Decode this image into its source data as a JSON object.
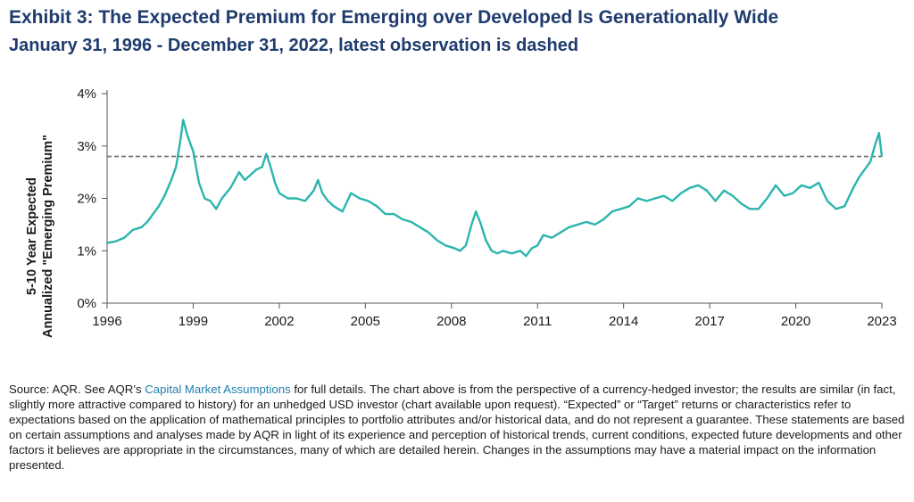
{
  "chart_data": {
    "type": "line",
    "title": "Exhibit 3: The Expected Premium for Emerging over Developed Is Generationally Wide",
    "subtitle": "January 31, 1996 - December 31, 2022, latest observation is dashed",
    "ylabel_line1": "5-10 Year Expected",
    "ylabel_line2": "Annualized \"Emerging Premium\"",
    "xlim": [
      1996,
      2023
    ],
    "ylim": [
      0,
      4
    ],
    "x_ticks": [
      "1996",
      "1999",
      "2002",
      "2005",
      "2008",
      "2011",
      "2014",
      "2017",
      "2020",
      "2023"
    ],
    "y_ticks": [
      "0%",
      "1%",
      "2%",
      "3%",
      "4%"
    ],
    "latest_observation": 2.8,
    "line_color": "#2bb5ad",
    "dashed_color": "#777777",
    "series": [
      {
        "x": [
          1996.0,
          1996.3,
          1996.6,
          1996.9,
          1997.2,
          1997.4,
          1997.6,
          1997.8,
          1998.0,
          1998.2,
          1998.4,
          1998.55,
          1998.65,
          1998.8,
          1999.0,
          1999.2,
          1999.4,
          1999.6,
          1999.8,
          2000.0,
          2000.3,
          2000.6,
          2000.8,
          2001.0,
          2001.2,
          2001.4,
          2001.55,
          2001.7,
          2001.85,
          2002.0,
          2002.3,
          2002.6,
          2002.9,
          2003.2,
          2003.35,
          2003.5,
          2003.7,
          2003.9,
          2004.2,
          2004.5,
          2004.8,
          2005.1,
          2005.4,
          2005.7,
          2006.0,
          2006.3,
          2006.6,
          2006.9,
          2007.2,
          2007.5,
          2007.8,
          2008.1,
          2008.3,
          2008.5,
          2008.7,
          2008.85,
          2009.0,
          2009.2,
          2009.4,
          2009.6,
          2009.8,
          2010.1,
          2010.4,
          2010.6,
          2010.8,
          2011.0,
          2011.2,
          2011.5,
          2011.8,
          2012.1,
          2012.4,
          2012.7,
          2013.0,
          2013.3,
          2013.6,
          2013.9,
          2014.2,
          2014.5,
          2014.8,
          2015.1,
          2015.4,
          2015.7,
          2016.0,
          2016.3,
          2016.6,
          2016.9,
          2017.2,
          2017.5,
          2017.8,
          2018.1,
          2018.4,
          2018.7,
          2019.0,
          2019.3,
          2019.6,
          2019.9,
          2020.2,
          2020.5,
          2020.8,
          2021.1,
          2021.4,
          2021.7,
          2022.0,
          2022.2,
          2022.4,
          2022.6,
          2022.75,
          2022.9,
          2023.0
        ],
        "y": [
          1.15,
          1.18,
          1.25,
          1.4,
          1.45,
          1.55,
          1.7,
          1.85,
          2.05,
          2.3,
          2.6,
          3.1,
          3.5,
          3.2,
          2.9,
          2.3,
          2.0,
          1.95,
          1.8,
          2.0,
          2.2,
          2.5,
          2.35,
          2.45,
          2.55,
          2.6,
          2.85,
          2.6,
          2.3,
          2.1,
          2.0,
          2.0,
          1.95,
          2.15,
          2.35,
          2.1,
          1.95,
          1.85,
          1.75,
          2.1,
          2.0,
          1.95,
          1.85,
          1.7,
          1.7,
          1.6,
          1.55,
          1.45,
          1.35,
          1.2,
          1.1,
          1.05,
          1.0,
          1.1,
          1.5,
          1.75,
          1.55,
          1.2,
          1.0,
          0.95,
          1.0,
          0.95,
          1.0,
          0.9,
          1.05,
          1.1,
          1.3,
          1.25,
          1.35,
          1.45,
          1.5,
          1.55,
          1.5,
          1.6,
          1.75,
          1.8,
          1.85,
          2.0,
          1.95,
          2.0,
          2.05,
          1.95,
          2.1,
          2.2,
          2.25,
          2.15,
          1.95,
          2.15,
          2.05,
          1.9,
          1.8,
          1.8,
          2.0,
          2.25,
          2.05,
          2.1,
          2.25,
          2.2,
          2.3,
          1.95,
          1.8,
          1.85,
          2.2,
          2.4,
          2.55,
          2.7,
          3.0,
          3.25,
          2.8
        ]
      }
    ]
  },
  "source": {
    "prefix": "Source: AQR. See AQR’s ",
    "link": "Capital Market Assumptions",
    "rest": " for full details. The chart above is from the perspective of a currency-hedged investor; the results are similar (in fact, slightly more attractive compared to history) for an unhedged USD investor (chart available upon request). “Expected” or “Target” returns or characteristics refer to expectations based on the application of mathematical principles to portfolio attributes and/or historical data, and do not represent a guarantee. These statements are based on certain assumptions and analyses made by AQR in light of its experience and perception of historical trends, current conditions, expected future developments and other factors it believes are appropriate in the circumstances, many of which are detailed herein. Changes in the assumptions may have a material impact on the information presented."
  }
}
